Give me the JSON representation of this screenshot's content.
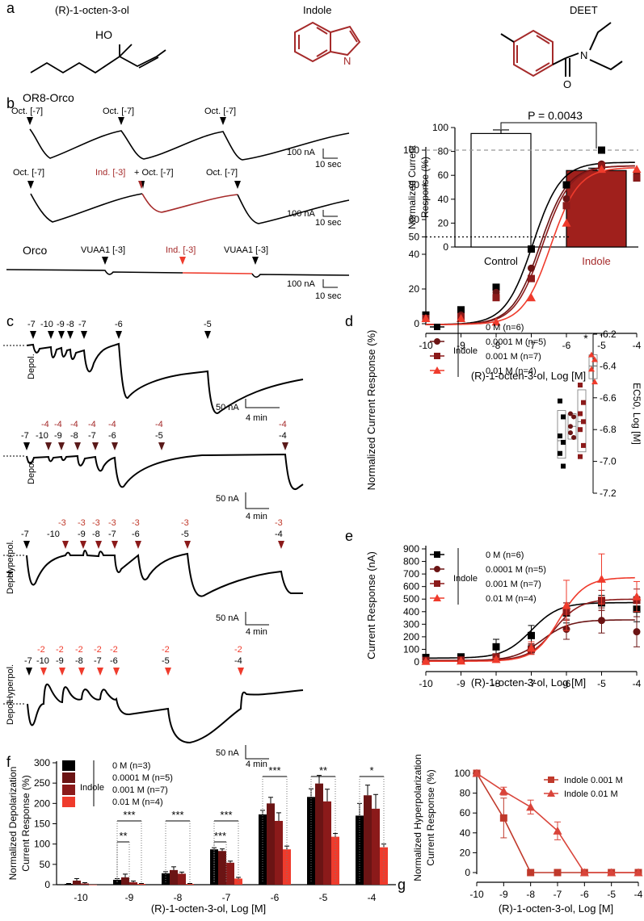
{
  "colors": {
    "black": "#000000",
    "maroon": "#6b1414",
    "darkred": "#8b1a1a",
    "red": "#c0392b",
    "bright": "#ef3b2c",
    "ring": "#a52a2a",
    "grid": "#999999"
  },
  "panels": {
    "a": "a",
    "b": "b",
    "c": "c",
    "d": "d",
    "e": "e",
    "f": "f",
    "g": "g"
  },
  "panel_a": {
    "mol1": "(R)-1-octen-3-ol",
    "mol1_ho": "HO",
    "mol2": "Indole",
    "mol2_n": "N",
    "mol3": "DEET",
    "mol3_n": "N",
    "mol3_o": "O"
  },
  "panel_b": {
    "title1": "OR8-Orco",
    "title3": "Orco",
    "oct": "Oct. [-7]",
    "ind": "Ind. [-3]",
    "ind_plus": " + Oct. [-7]",
    "ind2": "Ind. [-3]",
    "vuaa": "VUAA1 [-3]",
    "scale_na": "100 nA",
    "scale_sec": "10 sec"
  },
  "panel_c": {
    "depol": "Depol.",
    "hyperpol": "Hyperpol.",
    "row1_labels": [
      "-7",
      "-10",
      "-9",
      "-8",
      "-7",
      "-6",
      "-5"
    ],
    "row2_black": [
      "-7",
      "-10",
      "-9",
      "-8",
      "-7",
      "-6",
      "-5",
      "-4"
    ],
    "row2_red": [
      "-4",
      "-4",
      "-4",
      "-4",
      "-4",
      "-4",
      "-4"
    ],
    "row3_black": [
      "-7",
      "-10",
      "-9",
      "-8",
      "-7",
      "-6",
      "-5",
      "-4"
    ],
    "row3_red": [
      "-3",
      "-3",
      "-3",
      "-3",
      "-3",
      "-3",
      "-3"
    ],
    "row4_black": [
      "-7",
      "-10",
      "-9",
      "-8",
      "-7",
      "-6",
      "-5",
      "-4"
    ],
    "row4_red": [
      "-2",
      "-2",
      "-2",
      "-2",
      "-2",
      "-2",
      "-2"
    ],
    "scale_na": "50 nA",
    "scale_min": "4 min"
  },
  "legend": {
    "indole": "Indole",
    "s0": "0 M (n=6)",
    "s1": "0.0001 M (n=5)",
    "s2": "0.001 M (n=7)",
    "s3": "0.01 M (n=4)"
  },
  "legend_f": {
    "indole": "Indole",
    "s0": "0 M (n=3)",
    "s1": "0.0001 M (n=5)",
    "s2": "0.001 M (n=7)",
    "s3": "0.01 M (n=4)"
  },
  "chart_data": [
    {
      "id": "b",
      "type": "bar",
      "categories": [
        "Control",
        "Indole"
      ],
      "values": [
        95,
        64
      ],
      "errors": [
        3,
        2
      ],
      "ylim": [
        0,
        100
      ],
      "yticks": [
        0,
        20,
        40,
        60,
        80,
        100
      ],
      "ylabel": "Normalized Current Response (%)",
      "annotation": "P = 0.0043"
    },
    {
      "id": "d",
      "type": "line",
      "title": "",
      "xlabel": "(R)-1-octen-3-ol, Log [M]",
      "ylabel": "Normalized Current Response (%)",
      "x": [
        -10,
        -9,
        -8,
        -7,
        -6,
        -5,
        -4
      ],
      "xlim": [
        -10,
        -4
      ],
      "ylim": [
        0,
        100
      ],
      "yticks": [
        0,
        20,
        40,
        50,
        60,
        80,
        100
      ],
      "series": [
        {
          "name": "0 M (n=6)",
          "values": [
            5,
            8,
            21,
            43,
            80,
            100,
            84
          ]
        },
        {
          "name": "0.0001 M (n=5)",
          "values": [
            3,
            5,
            18,
            32,
            72,
            92,
            86
          ]
        },
        {
          "name": "0.001 M (n=7)",
          "values": [
            3,
            4,
            15,
            26,
            68,
            91,
            84
          ]
        },
        {
          "name": "0.01 M (n=4)",
          "values": [
            3,
            3,
            1,
            15,
            58,
            89,
            89
          ]
        }
      ],
      "inset_ylabel": "EC50, Log [M]",
      "inset_yticks": [
        -6.2,
        -6.4,
        -6.6,
        -6.8,
        -7.0,
        -7.2
      ],
      "inset_star": "*"
    },
    {
      "id": "e",
      "type": "line",
      "xlabel": "(R)-1-octen-3-ol, Log [M]",
      "ylabel": "Current Response (nA)",
      "x": [
        -10,
        -9,
        -8,
        -7,
        -6,
        -5,
        -4
      ],
      "xlim": [
        -10,
        -4
      ],
      "ylim": [
        0,
        900
      ],
      "yticks": [
        0,
        100,
        200,
        300,
        400,
        500,
        600,
        700,
        800,
        900
      ],
      "series": [
        {
          "name": "0 M (n=6)",
          "values": [
            35,
            40,
            120,
            210,
            390,
            470,
            420
          ],
          "errors": [
            20,
            15,
            60,
            80,
            80,
            60,
            100
          ]
        },
        {
          "name": "0.0001 M (n=5)",
          "values": [
            10,
            15,
            30,
            105,
            260,
            330,
            240
          ],
          "errors": [
            5,
            5,
            15,
            40,
            80,
            100,
            120
          ]
        },
        {
          "name": "0.001 M (n=7)",
          "values": [
            12,
            15,
            40,
            100,
            400,
            490,
            490
          ],
          "errors": [
            5,
            8,
            20,
            40,
            70,
            80,
            90
          ]
        },
        {
          "name": "0.01 M (n=4)",
          "values": [
            5,
            8,
            20,
            110,
            450,
            660,
            520
          ],
          "errors": [
            3,
            5,
            10,
            50,
            200,
            200,
            120
          ]
        }
      ]
    },
    {
      "id": "f",
      "type": "bar",
      "xlabel": "(R)-1-octen-3-ol, Log [M]",
      "ylabel": "Normalized Depolarization Current Response (%)",
      "categories": [
        "-10",
        "-9",
        "-8",
        "-7",
        "-6",
        "-5",
        "-4"
      ],
      "ylim": [
        0,
        300
      ],
      "yticks": [
        0,
        50,
        100,
        150,
        200,
        250,
        300
      ],
      "series": [
        {
          "name": "0 M (n=3)",
          "values": [
            2,
            12,
            28,
            87,
            173,
            216,
            170
          ],
          "errors": [
            1,
            3,
            4,
            4,
            10,
            20,
            30
          ]
        },
        {
          "name": "0.0001 M (n=5)",
          "values": [
            10,
            18,
            36,
            83,
            200,
            249,
            220
          ],
          "errors": [
            5,
            8,
            8,
            5,
            15,
            20,
            25
          ]
        },
        {
          "name": "0.001 M (n=7)",
          "values": [
            3,
            6,
            27,
            54,
            157,
            205,
            187
          ],
          "errors": [
            2,
            3,
            4,
            4,
            20,
            30,
            35
          ]
        },
        {
          "name": "0.01 M (n=4)",
          "values": [
            0,
            2,
            2,
            15,
            87,
            118,
            92
          ],
          "errors": [
            0,
            1,
            1,
            3,
            8,
            8,
            8
          ]
        }
      ],
      "significance": [
        {
          "cat": "-9",
          "labels": [
            "***",
            "**"
          ]
        },
        {
          "cat": "-8",
          "labels": [
            "***"
          ]
        },
        {
          "cat": "-7",
          "labels": [
            "***",
            "***"
          ]
        },
        {
          "cat": "-6",
          "labels": [
            "***"
          ]
        },
        {
          "cat": "-5",
          "labels": [
            "**"
          ]
        },
        {
          "cat": "-4",
          "labels": [
            "*"
          ]
        }
      ]
    },
    {
      "id": "g",
      "type": "line",
      "xlabel": "(R)-1-octen-3-ol, Log [M]",
      "ylabel": "Normalized Hyperpolarization Current Response (%)",
      "x": [
        -10,
        -9,
        -8,
        -7,
        -6,
        -5,
        -4
      ],
      "xlim": [
        -10,
        -4
      ],
      "ylim": [
        0,
        100
      ],
      "yticks": [
        0,
        20,
        40,
        60,
        80,
        100
      ],
      "series": [
        {
          "name": "Indole 0.001 M",
          "values": [
            100,
            55,
            0,
            0,
            0,
            0,
            0
          ],
          "errors": [
            0,
            20,
            0,
            0,
            0,
            0,
            0
          ]
        },
        {
          "name": "Indole 0.01 M",
          "values": [
            100,
            82,
            66,
            42,
            0,
            0,
            0
          ],
          "errors": [
            0,
            4,
            7,
            9,
            0,
            0,
            0
          ]
        }
      ]
    }
  ]
}
